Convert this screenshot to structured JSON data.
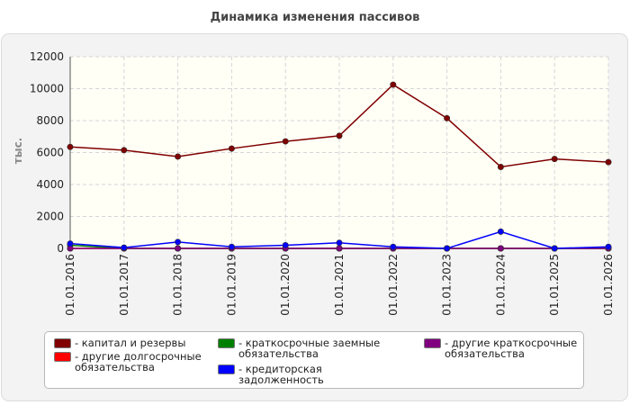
{
  "chart_data": {
    "type": "line",
    "title": "Динамика изменения пассивов",
    "ylabel": "тыс.",
    "xlabel": "",
    "ylim": [
      0,
      12000
    ],
    "yticks": [
      0,
      2000,
      4000,
      6000,
      8000,
      10000,
      12000
    ],
    "grid": true,
    "legend_position": "bottom",
    "categories": [
      "01.01.2016",
      "01.01.2017",
      "01.01.2018",
      "01.01.2019",
      "01.01.2020",
      "01.01.2021",
      "01.01.2022",
      "01.01.2023",
      "01.01.2024",
      "01.01.2025",
      "01.01.2026"
    ],
    "series": [
      {
        "name": "капитал и резервы",
        "color": "#800000",
        "values": [
          6350,
          6150,
          5750,
          6250,
          6700,
          7050,
          10250,
          8150,
          5100,
          5600,
          5400
        ]
      },
      {
        "name": "другие долгосрочные обязательства",
        "color": "#ff0000",
        "values": [
          0,
          0,
          0,
          0,
          0,
          0,
          0,
          0,
          0,
          0,
          0
        ]
      },
      {
        "name": "краткосрочные заемные обязательства",
        "color": "#008000",
        "values": [
          200,
          0,
          0,
          0,
          0,
          0,
          0,
          0,
          0,
          0,
          0
        ]
      },
      {
        "name": "кредиторская задолженность",
        "color": "#0000ff",
        "values": [
          300,
          50,
          400,
          100,
          200,
          350,
          100,
          0,
          1050,
          0,
          100
        ]
      },
      {
        "name": "другие краткосрочные обязательства",
        "color": "#800080",
        "values": [
          0,
          0,
          0,
          0,
          0,
          0,
          0,
          0,
          0,
          0,
          0
        ]
      }
    ]
  }
}
